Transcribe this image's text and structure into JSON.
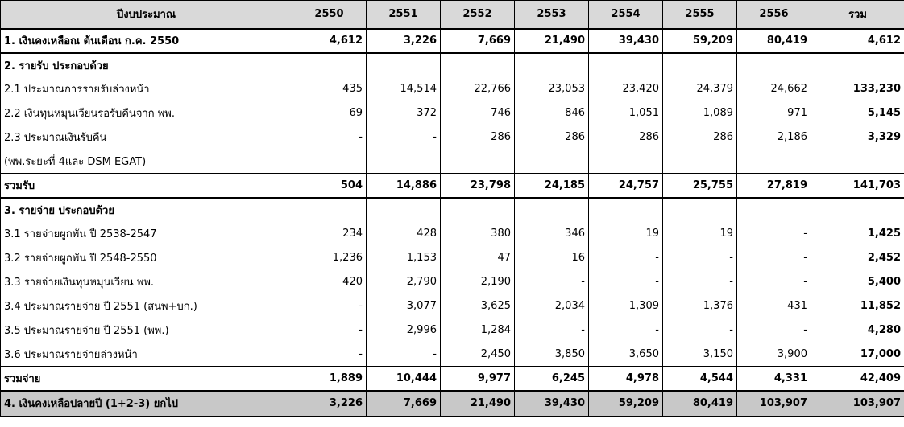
{
  "header": {
    "label": "ปีงบประมาณ",
    "years": [
      "2550",
      "2551",
      "2552",
      "2553",
      "2554",
      "2555",
      "2556"
    ],
    "total": "รวม"
  },
  "rows": {
    "r1": {
      "label": "1.  เงินคงเหลือณ ต้นเดือน ก.ค. 2550",
      "values": [
        "4,612",
        "3,226",
        "7,669",
        "21,490",
        "39,430",
        "59,209",
        "80,419"
      ],
      "total": "4,612"
    },
    "s2": {
      "label": "2. รายรับ ประกอบด้วย"
    },
    "r21": {
      "label": "2.1  ประมาณการรายรับล่วงหน้า",
      "values": [
        "435",
        "14,514",
        "22,766",
        "23,053",
        "23,420",
        "24,379",
        "24,662"
      ],
      "total": "133,230"
    },
    "r22": {
      "label": "2.2  เงินทุนหมุนเวียนรอรับคืนจาก พพ.",
      "values": [
        "69",
        "372",
        "746",
        "846",
        "1,051",
        "1,089",
        "971"
      ],
      "total": "5,145"
    },
    "r23": {
      "label": "2.3  ประมาณเงินรับคืน",
      "values": [
        "-",
        "-",
        "286",
        "286",
        "286",
        "286",
        "2,186"
      ],
      "total": "3,329"
    },
    "r23b": {
      "label": "(พพ.ระยะที่ 4และ DSM EGAT)"
    },
    "rin": {
      "label": "รวมรับ",
      "values": [
        "504",
        "14,886",
        "23,798",
        "24,185",
        "24,757",
        "25,755",
        "27,819"
      ],
      "total": "141,703"
    },
    "s3": {
      "label": "3. รายจ่าย ประกอบด้วย"
    },
    "r31": {
      "label": "3.1  รายจ่ายผูกพัน ปี 2538-2547",
      "values": [
        "234",
        "428",
        "380",
        "346",
        "19",
        "19",
        "-"
      ],
      "total": "1,425"
    },
    "r32": {
      "label": "3.2  รายจ่ายผูกพัน ปี 2548-2550",
      "values": [
        "1,236",
        "1,153",
        "47",
        "16",
        "-",
        "-",
        "-"
      ],
      "total": "2,452"
    },
    "r33": {
      "label": "3.3  รายจ่ายเงินทุนหมุนเวียน พพ.",
      "values": [
        "420",
        "2,790",
        "2,190",
        "-",
        "-",
        "-",
        "-"
      ],
      "total": "5,400"
    },
    "r34": {
      "label": "3.4  ประมาณรายจ่าย ปี 2551 (สนพ+บก.)",
      "values": [
        "-",
        "3,077",
        "3,625",
        "2,034",
        "1,309",
        "1,376",
        "431"
      ],
      "total": "11,852"
    },
    "r35": {
      "label": "3.5  ประมาณรายจ่าย ปี 2551 (พพ.)",
      "values": [
        "-",
        "2,996",
        "1,284",
        "-",
        "-",
        "-",
        "-"
      ],
      "total": "4,280"
    },
    "r36": {
      "label": "3.6  ประมาณรายจ่ายล่วงหน้า",
      "values": [
        "-",
        "-",
        "2,450",
        "3,850",
        "3,650",
        "3,150",
        "3,900"
      ],
      "total": "17,000"
    },
    "rout": {
      "label": "รวมจ่าย",
      "values": [
        "1,889",
        "10,444",
        "9,977",
        "6,245",
        "4,978",
        "4,544",
        "4,331"
      ],
      "total": "42,409"
    },
    "r4": {
      "label": "4. เงินคงเหลือปลายปี (1+2-3) ยกไป",
      "values": [
        "3,226",
        "7,669",
        "21,490",
        "39,430",
        "59,209",
        "80,419",
        "103,907"
      ],
      "total": "103,907"
    }
  }
}
